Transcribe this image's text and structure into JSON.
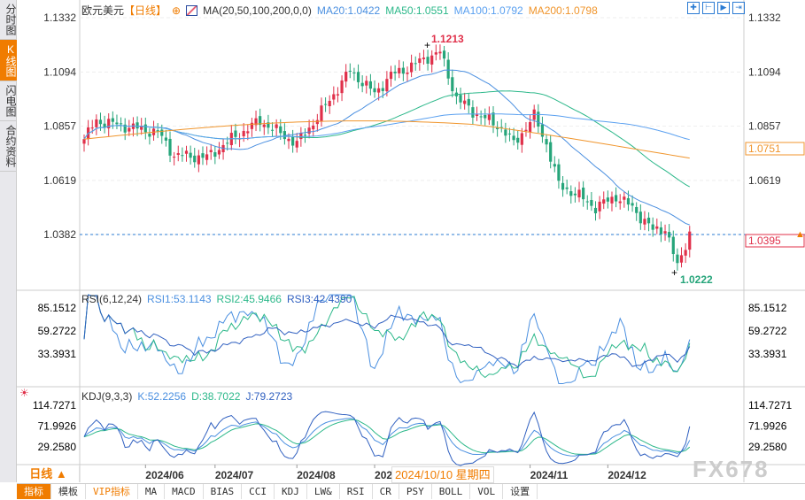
{
  "sidebar": {
    "tabs": [
      {
        "label": "分时图",
        "active": false
      },
      {
        "label": "K线图",
        "active": true
      },
      {
        "label": "闪电图",
        "active": false
      },
      {
        "label": "合约资料",
        "active": false
      }
    ]
  },
  "legend": {
    "symbol": "欧元美元",
    "period": "【日线】",
    "add_icon": "⊕",
    "ma_name": "MA(20,50,100,200,0,0)",
    "ma20": "MA20:1.0422",
    "ma50": "MA50:1.0551",
    "ma100": "MA100:1.0792",
    "ma200": "MA200:1.0798"
  },
  "toolbar_icons": [
    "crosshair-icon",
    "zoom-range-icon",
    "play-icon",
    "exit-icon"
  ],
  "colors": {
    "ma20": "#4a8fe0",
    "ma50": "#2cb88a",
    "ma100": "#5aa0f0",
    "ma200": "#f0952c",
    "up": "#e0304a",
    "down": "#26a57a",
    "rsi1": "#4a8fe0",
    "rsi2": "#2cb88a",
    "rsi3": "#3060c0",
    "accent": "#f07c00"
  },
  "rsi_legend": {
    "name": "RSI(6,12,24)",
    "rsi1": "RSI1:53.1143",
    "rsi2": "RSI2:45.9466",
    "rsi3": "RSI3:42.4390"
  },
  "kdj_legend": {
    "name": "KDJ(9,3,3)",
    "k": "K:52.2256",
    "d": "D:38.7022",
    "j": "J:79.2723"
  },
  "period_label": "日线 ▲",
  "tooltip_date": "2024/10/10 星期四",
  "watermark": "FX678",
  "bottom_tabs": [
    {
      "label": "指标",
      "active": true
    },
    {
      "label": "模板"
    },
    {
      "label": "VIP指标",
      "vip": true
    },
    {
      "label": "MA"
    },
    {
      "label": "MACD"
    },
    {
      "label": "BIAS"
    },
    {
      "label": "CCI"
    },
    {
      "label": "KDJ"
    },
    {
      "label": "LW&"
    },
    {
      "label": "RSI"
    },
    {
      "label": "CR"
    },
    {
      "label": "PSY"
    },
    {
      "label": "BOLL"
    },
    {
      "label": "VOL"
    },
    {
      "label": "设置"
    }
  ],
  "chart_data": {
    "type": "candlestick",
    "title": "欧元美元 日线",
    "price_ticks": [
      "1.1332",
      "1.1094",
      "1.0857",
      "1.0619",
      "1.0382"
    ],
    "price_range": [
      1.017,
      1.1332
    ],
    "rsi_ticks": [
      "85.1512",
      "59.2722",
      "33.3931"
    ],
    "kdj_ticks": [
      "114.7271",
      "71.9926",
      "29.2580"
    ],
    "x_ticks": [
      {
        "label": "2024/06",
        "day": 15
      },
      {
        "label": "2024/07",
        "day": 32
      },
      {
        "label": "2024/08",
        "day": 52
      },
      {
        "label": "2024",
        "day": 71
      },
      {
        "label": "2024/11",
        "day": 109
      },
      {
        "label": "2024/12",
        "day": 128
      }
    ],
    "close_keypoints": [
      [
        0,
        1.08
      ],
      [
        3,
        1.088
      ],
      [
        12,
        1.085
      ],
      [
        18,
        1.083
      ],
      [
        22,
        1.073
      ],
      [
        30,
        1.072
      ],
      [
        36,
        1.08
      ],
      [
        43,
        1.088
      ],
      [
        52,
        1.078
      ],
      [
        58,
        1.092
      ],
      [
        65,
        1.11
      ],
      [
        71,
        1.1
      ],
      [
        75,
        1.108
      ],
      [
        80,
        1.112
      ],
      [
        84,
        1.116
      ],
      [
        87,
        1.118
      ],
      [
        91,
        1.098
      ],
      [
        95,
        1.092
      ],
      [
        102,
        1.085
      ],
      [
        105,
        1.078
      ],
      [
        110,
        1.09
      ],
      [
        113,
        1.078
      ],
      [
        116,
        1.06
      ],
      [
        121,
        1.055
      ],
      [
        125,
        1.05
      ],
      [
        130,
        1.055
      ],
      [
        134,
        1.05
      ],
      [
        139,
        1.04
      ],
      [
        142,
        1.041
      ],
      [
        145,
        1.024
      ],
      [
        148,
        1.0395
      ]
    ],
    "high_label": "1.1213",
    "low_label": "1.0222",
    "last_price": "1.0395",
    "ma200_price": "1.0751",
    "dashed_level": 1.0382
  }
}
